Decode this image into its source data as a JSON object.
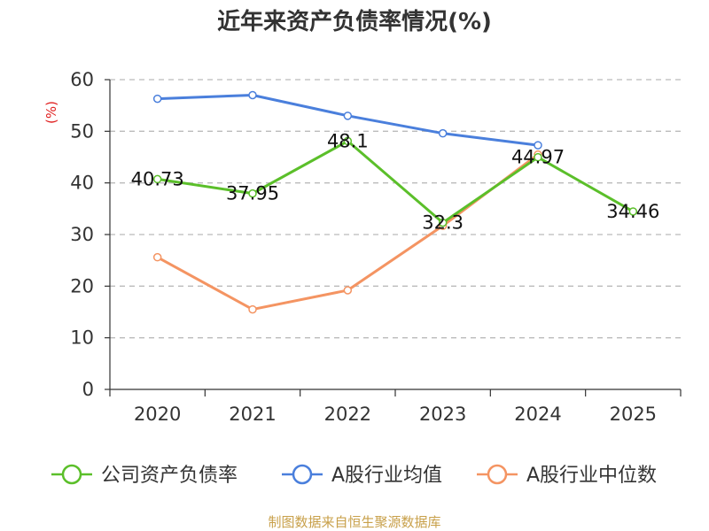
{
  "chart_data": {
    "type": "line",
    "title": "近年来资产负债率情况(%)",
    "ylabel": "(%)",
    "xlabel": "",
    "ylim": [
      0,
      60
    ],
    "yticks": [
      0,
      10,
      20,
      30,
      40,
      50,
      60
    ],
    "categories": [
      "2020",
      "2021",
      "2022",
      "2023",
      "2024",
      "2025"
    ],
    "grid": "horizontal dashed",
    "legend_position": "bottom",
    "series": [
      {
        "name": "公司资产负债率",
        "color": "#5bbf2a",
        "values": [
          40.73,
          37.95,
          48.1,
          32.3,
          44.97,
          34.46
        ],
        "labels": [
          "40.73",
          "37.95",
          "48.1",
          "32.3",
          "44.97",
          "34.46"
        ]
      },
      {
        "name": "A股行业均值",
        "color": "#4a7fdc",
        "values": [
          56.3,
          57.0,
          53.0,
          49.6,
          47.3,
          null
        ]
      },
      {
        "name": "A股行业中位数",
        "color": "#f49462",
        "values": [
          25.6,
          15.5,
          19.2,
          31.7,
          45.5,
          null
        ]
      }
    ]
  },
  "footer": {
    "source": "制图数据来自恒生聚源数据库"
  }
}
